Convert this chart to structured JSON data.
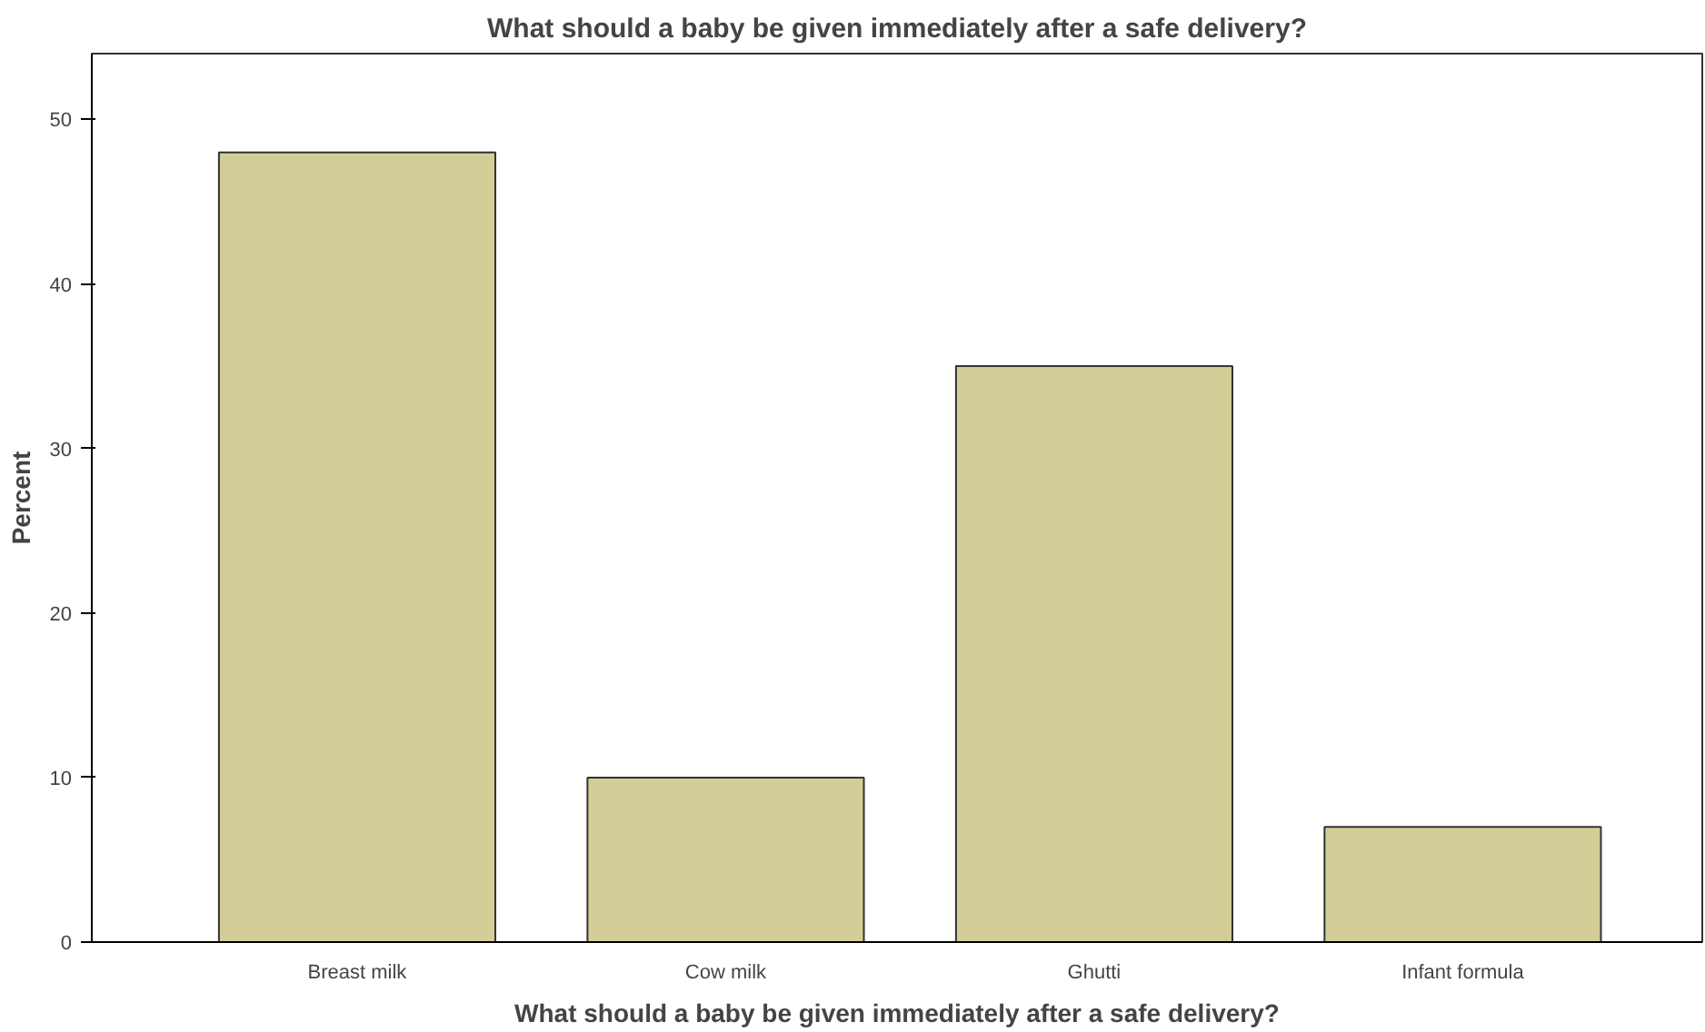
{
  "chart_data": {
    "type": "bar",
    "title": "What should a baby be given immediately after a safe delivery?",
    "xlabel": "What should a baby be given immediately after a safe delivery?",
    "ylabel": "Percent",
    "categories": [
      "Breast milk",
      "Cow milk",
      "Ghutti",
      "Infant formula"
    ],
    "values": [
      48,
      10,
      35,
      7
    ],
    "color": "#d3ce97",
    "ylim": [
      0,
      54
    ],
    "yticks": [
      0,
      10,
      20,
      30,
      40,
      50
    ],
    "grid": false
  }
}
